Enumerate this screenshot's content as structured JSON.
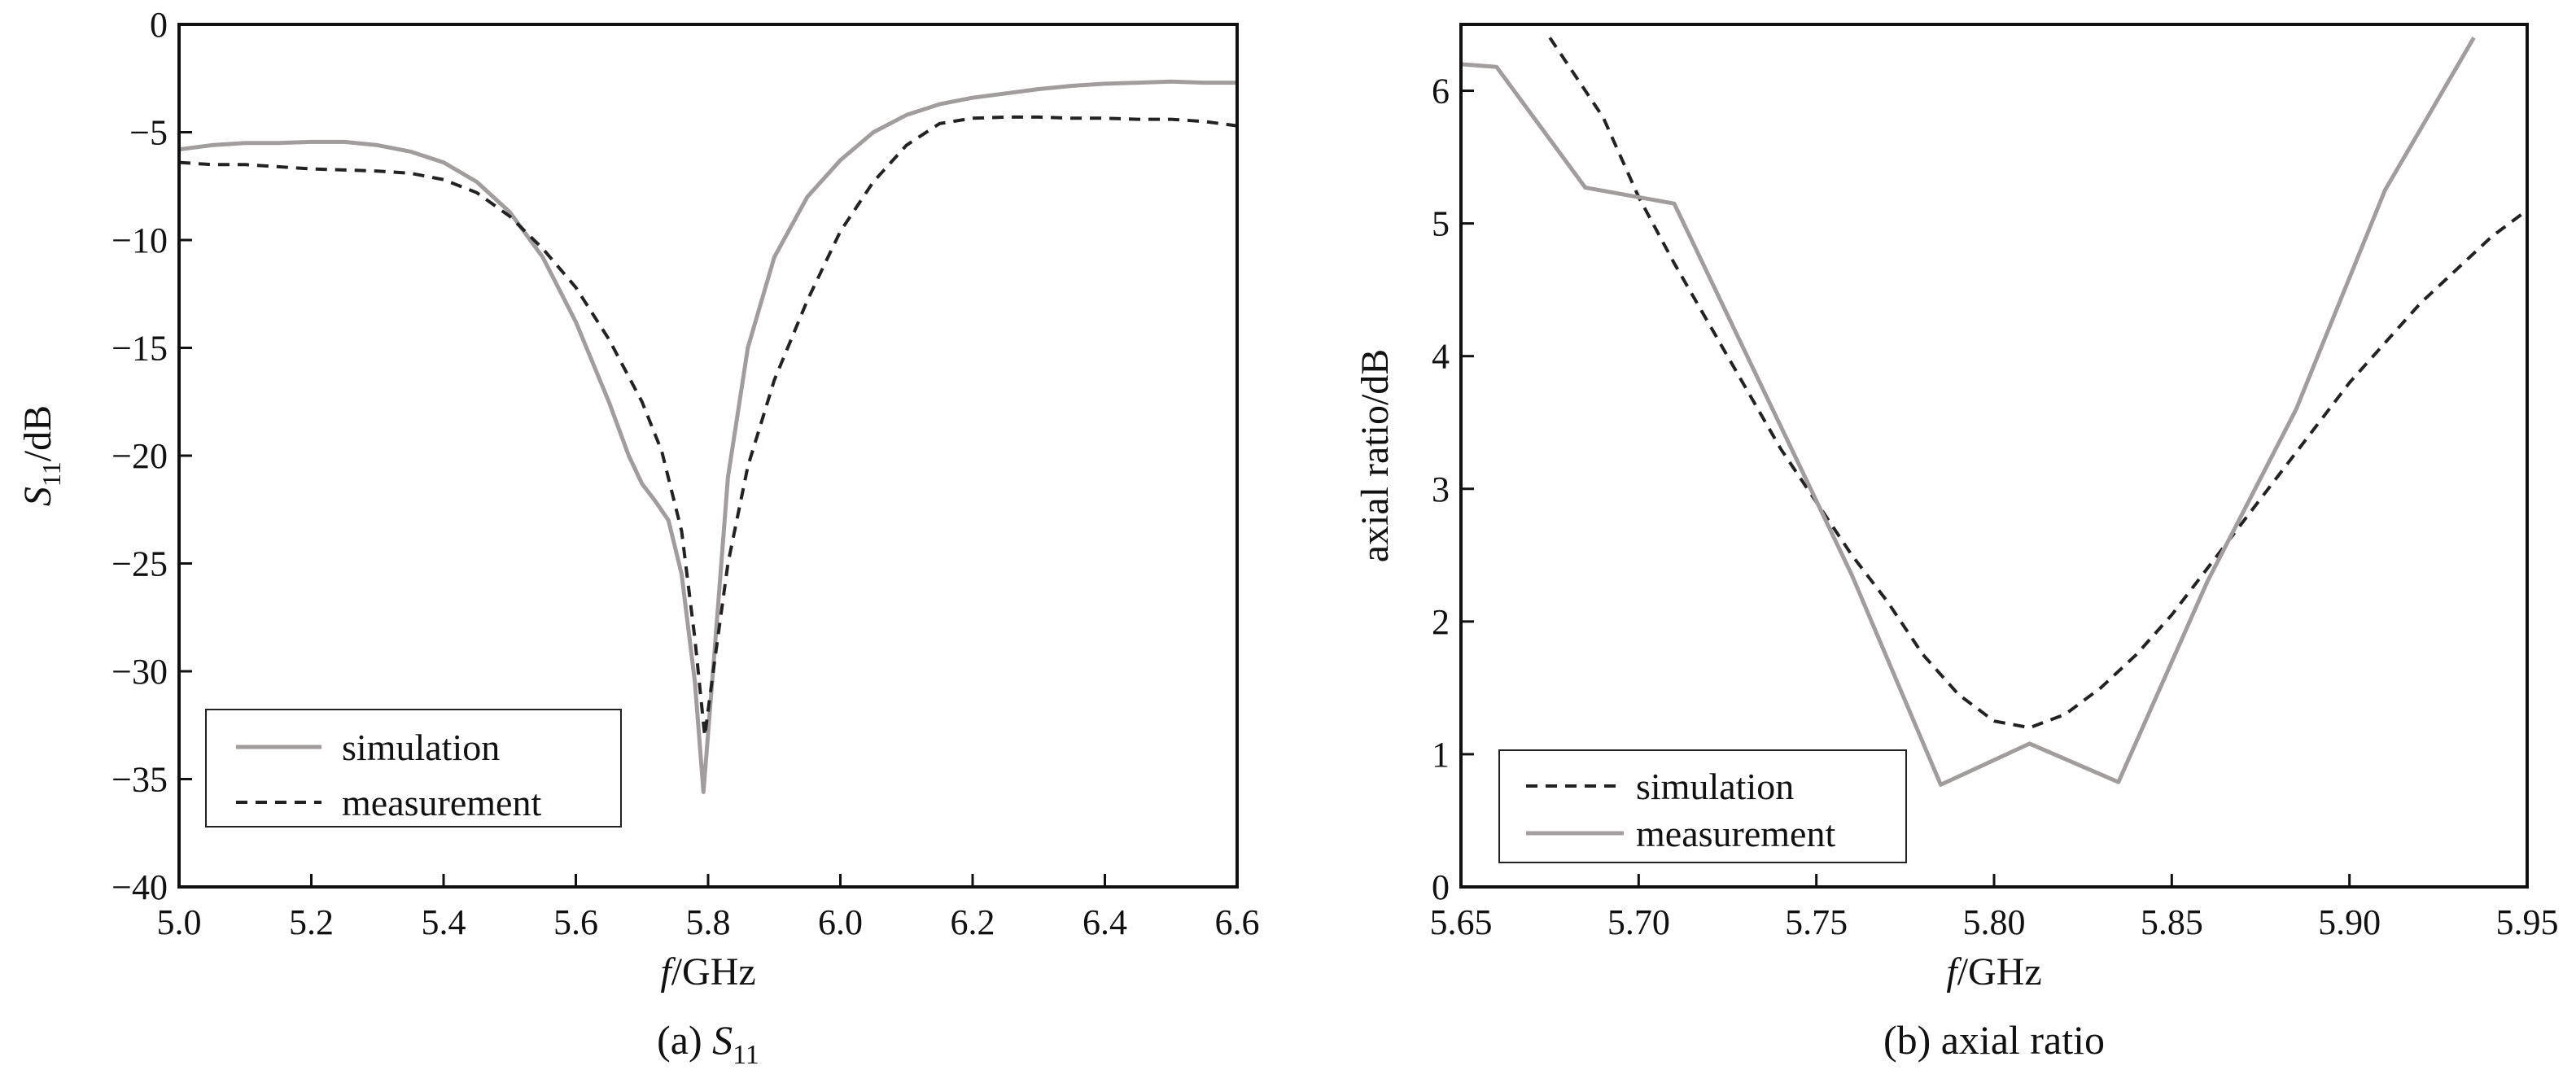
{
  "chart_data": [
    {
      "id": "a",
      "type": "line",
      "caption_prefix": "(a) ",
      "caption_symbol": "S",
      "caption_sub": "11",
      "xlabel_italic": "f",
      "xlabel_rest": "/GHz",
      "ylabel_symbol": "S",
      "ylabel_sub": "11",
      "ylabel_rest": "/dB",
      "xlim": [
        5.0,
        6.6
      ],
      "ylim": [
        -40,
        0
      ],
      "xticks": [
        5.0,
        5.2,
        5.4,
        5.6,
        5.8,
        6.0,
        6.2,
        6.4,
        6.6
      ],
      "xtick_labels": [
        "5.0",
        "5.2",
        "5.4",
        "5.6",
        "5.8",
        "6.0",
        "6.2",
        "6.4",
        "6.6"
      ],
      "yticks": [
        0,
        -5,
        -10,
        -15,
        -20,
        -25,
        -30,
        -35,
        -40
      ],
      "ytick_labels": [
        "0",
        "−5",
        "−10",
        "−15",
        "−20",
        "−25",
        "−30",
        "−35",
        "−40"
      ],
      "legend_position": "bottom-left",
      "legend_order": [
        "simulation",
        "measurement"
      ],
      "series": [
        {
          "name": "simulation",
          "style": "solid",
          "color": "#a29d9d",
          "points": [
            [
              5.0,
              -5.8
            ],
            [
              5.05,
              -5.6
            ],
            [
              5.1,
              -5.5
            ],
            [
              5.15,
              -5.5
            ],
            [
              5.2,
              -5.45
            ],
            [
              5.25,
              -5.45
            ],
            [
              5.3,
              -5.6
            ],
            [
              5.35,
              -5.9
            ],
            [
              5.4,
              -6.4
            ],
            [
              5.45,
              -7.3
            ],
            [
              5.5,
              -8.7
            ],
            [
              5.55,
              -10.8
            ],
            [
              5.6,
              -13.8
            ],
            [
              5.65,
              -17.5
            ],
            [
              5.68,
              -20.0
            ],
            [
              5.7,
              -21.3
            ],
            [
              5.72,
              -22.1
            ],
            [
              5.74,
              -23.0
            ],
            [
              5.76,
              -25.5
            ],
            [
              5.78,
              -30.5
            ],
            [
              5.793,
              -35.6
            ],
            [
              5.81,
              -29.0
            ],
            [
              5.83,
              -21.0
            ],
            [
              5.86,
              -15.0
            ],
            [
              5.9,
              -10.8
            ],
            [
              5.95,
              -8.0
            ],
            [
              6.0,
              -6.3
            ],
            [
              6.05,
              -5.0
            ],
            [
              6.1,
              -4.2
            ],
            [
              6.15,
              -3.7
            ],
            [
              6.2,
              -3.4
            ],
            [
              6.25,
              -3.2
            ],
            [
              6.3,
              -3.0
            ],
            [
              6.35,
              -2.85
            ],
            [
              6.4,
              -2.75
            ],
            [
              6.45,
              -2.7
            ],
            [
              6.5,
              -2.65
            ],
            [
              6.55,
              -2.7
            ],
            [
              6.6,
              -2.7
            ]
          ]
        },
        {
          "name": "measurement",
          "style": "dashed",
          "color": "#222222",
          "points": [
            [
              5.0,
              -6.4
            ],
            [
              5.05,
              -6.5
            ],
            [
              5.1,
              -6.5
            ],
            [
              5.15,
              -6.6
            ],
            [
              5.2,
              -6.7
            ],
            [
              5.25,
              -6.75
            ],
            [
              5.3,
              -6.8
            ],
            [
              5.35,
              -6.9
            ],
            [
              5.4,
              -7.2
            ],
            [
              5.45,
              -7.8
            ],
            [
              5.5,
              -8.9
            ],
            [
              5.55,
              -10.4
            ],
            [
              5.6,
              -12.2
            ],
            [
              5.65,
              -14.6
            ],
            [
              5.7,
              -17.5
            ],
            [
              5.73,
              -19.8
            ],
            [
              5.76,
              -23.5
            ],
            [
              5.78,
              -28.5
            ],
            [
              5.795,
              -33.0
            ],
            [
              5.81,
              -29.5
            ],
            [
              5.83,
              -25.0
            ],
            [
              5.86,
              -20.5
            ],
            [
              5.9,
              -16.5
            ],
            [
              5.95,
              -12.8
            ],
            [
              6.0,
              -9.6
            ],
            [
              6.05,
              -7.3
            ],
            [
              6.1,
              -5.6
            ],
            [
              6.15,
              -4.6
            ],
            [
              6.2,
              -4.35
            ],
            [
              6.25,
              -4.3
            ],
            [
              6.3,
              -4.3
            ],
            [
              6.35,
              -4.35
            ],
            [
              6.4,
              -4.35
            ],
            [
              6.45,
              -4.4
            ],
            [
              6.5,
              -4.4
            ],
            [
              6.55,
              -4.5
            ],
            [
              6.6,
              -4.7
            ]
          ]
        }
      ]
    },
    {
      "id": "b",
      "type": "line",
      "caption": "(b) axial ratio",
      "xlabel_italic": "f",
      "xlabel_rest": "/GHz",
      "ylabel": "axial ratio/dB",
      "xlim": [
        5.65,
        5.95
      ],
      "ylim": [
        0,
        6.5
      ],
      "xticks": [
        5.65,
        5.7,
        5.75,
        5.8,
        5.85,
        5.9,
        5.95
      ],
      "xtick_labels": [
        "5.65",
        "5.70",
        "5.75",
        "5.80",
        "5.85",
        "5.90",
        "5.95"
      ],
      "yticks": [
        0,
        1,
        2,
        3,
        4,
        5,
        6
      ],
      "ytick_labels": [
        "0",
        "1",
        "2",
        "3",
        "4",
        "5",
        "6"
      ],
      "legend_position": "bottom-left",
      "legend_order": [
        "simulation",
        "measurement"
      ],
      "series": [
        {
          "name": "simulation",
          "style": "dashed",
          "color": "#222222",
          "points": [
            [
              5.675,
              6.4
            ],
            [
              5.69,
              5.8
            ],
            [
              5.7,
              5.2
            ],
            [
              5.71,
              4.7
            ],
            [
              5.725,
              4.0
            ],
            [
              5.74,
              3.3
            ],
            [
              5.75,
              2.9
            ],
            [
              5.76,
              2.5
            ],
            [
              5.77,
              2.15
            ],
            [
              5.78,
              1.75
            ],
            [
              5.79,
              1.45
            ],
            [
              5.8,
              1.25
            ],
            [
              5.81,
              1.2
            ],
            [
              5.82,
              1.3
            ],
            [
              5.83,
              1.5
            ],
            [
              5.84,
              1.75
            ],
            [
              5.85,
              2.05
            ],
            [
              5.86,
              2.4
            ],
            [
              5.87,
              2.75
            ],
            [
              5.88,
              3.1
            ],
            [
              5.89,
              3.45
            ],
            [
              5.9,
              3.8
            ],
            [
              5.91,
              4.1
            ],
            [
              5.92,
              4.4
            ],
            [
              5.93,
              4.65
            ],
            [
              5.94,
              4.9
            ],
            [
              5.95,
              5.1
            ]
          ]
        },
        {
          "name": "measurement",
          "style": "solid",
          "color": "#a29d9d",
          "points": [
            [
              5.65,
              6.2
            ],
            [
              5.66,
              6.18
            ],
            [
              5.685,
              5.27
            ],
            [
              5.71,
              5.15
            ],
            [
              5.735,
              3.75
            ],
            [
              5.76,
              2.35
            ],
            [
              5.785,
              0.77
            ],
            [
              5.81,
              1.08
            ],
            [
              5.835,
              0.79
            ],
            [
              5.86,
              2.3
            ],
            [
              5.885,
              3.6
            ],
            [
              5.91,
              5.25
            ],
            [
              5.935,
              6.4
            ]
          ]
        }
      ]
    }
  ]
}
